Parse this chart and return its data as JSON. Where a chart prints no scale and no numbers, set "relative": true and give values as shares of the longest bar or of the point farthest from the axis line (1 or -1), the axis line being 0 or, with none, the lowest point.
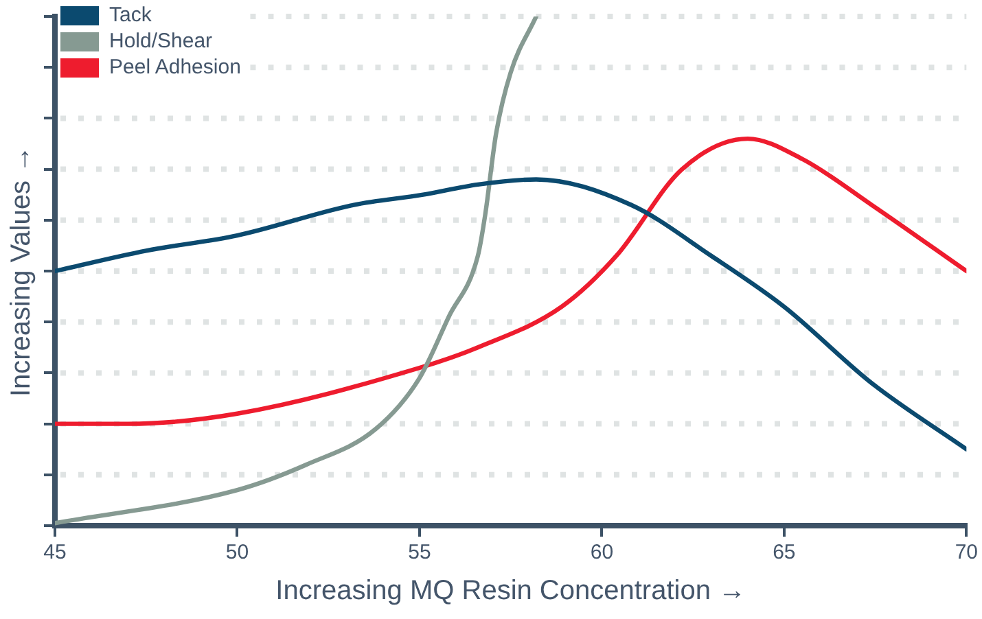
{
  "chart_data": {
    "type": "line",
    "relative": true,
    "xlabel": "Increasing MQ Resin Concentration →",
    "ylabel": "Increasing Values →",
    "xlim": [
      45,
      70
    ],
    "xticks": [
      45,
      50,
      55,
      60,
      65,
      70
    ],
    "grid": "y",
    "legend": "top left",
    "tick_labels": "x",
    "marker": "none",
    "line_style": "solid",
    "series": [
      {
        "name": "Tack",
        "color": "#0b4a6f",
        "x": [
          45,
          47.5,
          50,
          53.2,
          55.1,
          56.6,
          58.2,
          60.8,
          63,
          65,
          67.4,
          70
        ],
        "values": [
          0.5,
          0.54,
          0.57,
          0.63,
          0.65,
          0.67,
          0.68,
          0.63,
          0.53,
          0.43,
          0.28,
          0.15
        ]
      },
      {
        "name": "Hold/Shear",
        "color": "#869a92",
        "x": [
          45,
          50,
          51.9,
          53.8,
          55,
          55.8,
          56.6,
          56.8,
          57.1,
          57.5,
          58.2
        ],
        "values": [
          0.005,
          0.07,
          0.12,
          0.19,
          0.29,
          0.41,
          0.53,
          0.61,
          0.77,
          0.89,
          1
        ]
      },
      {
        "name": "Peel Adhesion",
        "color": "#ee1c2e",
        "x": [
          45,
          47,
          50,
          55,
          56.6,
          58.9,
          60.4,
          62.2,
          64,
          65.5,
          67.4,
          70
        ],
        "values": [
          0.2,
          0.2,
          0.22,
          0.31,
          0.35,
          0.43,
          0.53,
          0.7,
          0.76,
          0.72,
          0.63,
          0.5
        ]
      }
    ]
  }
}
